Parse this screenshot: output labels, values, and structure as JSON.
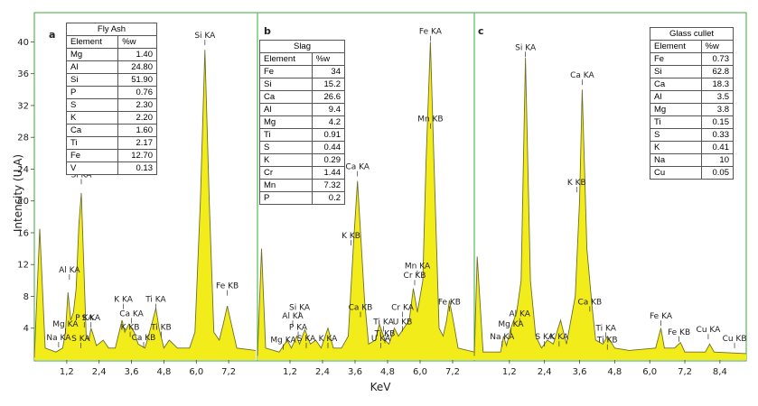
{
  "chart_data": [
    {
      "type": "line",
      "panel": "a",
      "xlabel": "KeV",
      "ylabel": "Intensity (U.A)",
      "x_ticks": [
        "1,2",
        "2,4",
        "3,6",
        "4,8",
        "6,0",
        "7,2"
      ],
      "x_tick_values": [
        1.2,
        2.4,
        3.6,
        4.8,
        6.0,
        7.2
      ],
      "y_ticks": [
        "4",
        "8",
        "12",
        "16",
        "20",
        "24",
        "28",
        "32",
        "36",
        "40"
      ],
      "y_tick_values": [
        4,
        8,
        12,
        16,
        20,
        24,
        28,
        32,
        36,
        40
      ],
      "xlim": [
        0,
        8.2
      ],
      "ylim": [
        0,
        43
      ],
      "spectrum": [
        [
          0.0,
          0.3
        ],
        [
          0.2,
          16.5
        ],
        [
          0.4,
          1.5
        ],
        [
          0.8,
          1.0
        ],
        [
          1.05,
          1.5
        ],
        [
          1.15,
          3.5
        ],
        [
          1.25,
          8.5
        ],
        [
          1.35,
          5.0
        ],
        [
          1.45,
          6.0
        ],
        [
          1.55,
          9.0
        ],
        [
          1.65,
          17.0
        ],
        [
          1.74,
          21.0
        ],
        [
          1.82,
          13.0
        ],
        [
          1.92,
          3.0
        ],
        [
          2.02,
          2.5
        ],
        [
          2.1,
          4.0
        ],
        [
          2.2,
          3.0
        ],
        [
          2.3,
          1.8
        ],
        [
          2.55,
          2.5
        ],
        [
          2.75,
          1.5
        ],
        [
          3.0,
          1.5
        ],
        [
          3.25,
          5.0
        ],
        [
          3.35,
          3.5
        ],
        [
          3.5,
          4.5
        ],
        [
          3.7,
          3.5
        ],
        [
          3.85,
          2.0
        ],
        [
          4.1,
          1.5
        ],
        [
          4.35,
          4.5
        ],
        [
          4.5,
          6.5
        ],
        [
          4.62,
          4.0
        ],
        [
          4.8,
          1.5
        ],
        [
          5.0,
          2.5
        ],
        [
          5.3,
          1.5
        ],
        [
          5.75,
          1.5
        ],
        [
          5.95,
          3.5
        ],
        [
          6.15,
          20.0
        ],
        [
          6.32,
          39.0
        ],
        [
          6.48,
          20.0
        ],
        [
          6.65,
          3.5
        ],
        [
          6.85,
          2.5
        ],
        [
          7.0,
          4.5
        ],
        [
          7.15,
          6.8
        ],
        [
          7.3,
          4.5
        ],
        [
          7.5,
          1.5
        ],
        [
          8.2,
          1.2
        ]
      ],
      "peak_labels": [
        "Na  KA",
        "Mg  KA",
        "Al  KA",
        "Si  KA",
        "P  KA",
        "S  KA",
        "S  KA",
        "K  KA",
        "Ca  KA",
        "K  KB",
        "Ca  KB",
        "Ti  KA",
        "Ti  KB",
        "Si  KA",
        "Fe  KB"
      ],
      "table": {
        "title": "Fly Ash",
        "headers": [
          "Element",
          "%w"
        ],
        "rows": [
          [
            "Mg",
            "1.40"
          ],
          [
            "Al",
            "24.80"
          ],
          [
            "Si",
            "51.90"
          ],
          [
            "P",
            "0.76"
          ],
          [
            "S",
            "2.30"
          ],
          [
            "K",
            "2.20"
          ],
          [
            "Ca",
            "1.60"
          ],
          [
            "Ti",
            "2.17"
          ],
          [
            "Fe",
            "12.70"
          ],
          [
            "V",
            "0.13"
          ]
        ]
      }
    },
    {
      "type": "line",
      "panel": "b",
      "xlabel": "KeV",
      "ylabel": "Intensity (U.A)",
      "x_ticks": [
        "1,2",
        "2,4",
        "3,6",
        "4,8",
        "6,0",
        "7,2"
      ],
      "x_tick_values": [
        1.2,
        2.4,
        3.6,
        4.8,
        6.0,
        7.2
      ],
      "xlim": [
        0,
        8.0
      ],
      "ylim": [
        0,
        43
      ],
      "spectrum": [
        [
          0.0,
          0.5
        ],
        [
          0.15,
          14.0
        ],
        [
          0.3,
          1.5
        ],
        [
          0.8,
          1.0
        ],
        [
          1.1,
          2.5
        ],
        [
          1.25,
          1.5
        ],
        [
          1.45,
          3.0
        ],
        [
          1.55,
          2.0
        ],
        [
          1.75,
          3.8
        ],
        [
          1.95,
          2.0
        ],
        [
          2.15,
          2.5
        ],
        [
          2.35,
          1.5
        ],
        [
          2.6,
          4.0
        ],
        [
          2.8,
          1.5
        ],
        [
          3.1,
          1.5
        ],
        [
          3.35,
          3.0
        ],
        [
          3.55,
          15.0
        ],
        [
          3.69,
          22.5
        ],
        [
          3.82,
          15.0
        ],
        [
          3.95,
          7.5
        ],
        [
          4.1,
          2.0
        ],
        [
          4.35,
          2.5
        ],
        [
          4.5,
          4.5
        ],
        [
          4.7,
          2.5
        ],
        [
          4.85,
          2.0
        ],
        [
          5.05,
          4.0
        ],
        [
          5.2,
          3.0
        ],
        [
          5.4,
          4.0
        ],
        [
          5.6,
          5.0
        ],
        [
          5.75,
          9.0
        ],
        [
          5.9,
          6.0
        ],
        [
          6.1,
          10.0
        ],
        [
          6.22,
          25.0
        ],
        [
          6.38,
          40.0
        ],
        [
          6.52,
          24.0
        ],
        [
          6.7,
          4.0
        ],
        [
          6.85,
          3.0
        ],
        [
          6.98,
          5.0
        ],
        [
          7.08,
          7.5
        ],
        [
          7.22,
          5.0
        ],
        [
          7.4,
          1.5
        ],
        [
          8.0,
          1.0
        ]
      ],
      "peak_labels": [
        "Mg  KA",
        "Al  KA",
        "Si  KA",
        "P  KA",
        "S  KA",
        "K  KA",
        "Ca  KA",
        "K  KB",
        "Ca  KB",
        "Ti  KA",
        "Ti  KB",
        "U  KA",
        "Cr  KA",
        "U  KB",
        "Mn  KA",
        "Cr  KB",
        "Fe  KA",
        "Mn  KB",
        "Fe  KB"
      ],
      "table": {
        "title": "Slag",
        "headers": [
          "Element",
          "%w"
        ],
        "rows": [
          [
            "Fe",
            "34"
          ],
          [
            "Si",
            "15.2"
          ],
          [
            "Ca",
            "26.6"
          ],
          [
            "Al",
            "9.4"
          ],
          [
            "Mg",
            "4.2"
          ],
          [
            "Ti",
            "0.91"
          ],
          [
            "S",
            "0.44"
          ],
          [
            "K",
            "0.29"
          ],
          [
            "Cr",
            "1.44"
          ],
          [
            "Mn",
            "7.32"
          ],
          [
            "P",
            "0.2"
          ]
        ]
      }
    },
    {
      "type": "line",
      "panel": "c",
      "xlabel": "KeV",
      "ylabel": "Intensity (U.A)",
      "x_ticks": [
        "1,2",
        "2,4",
        "3,6",
        "4,8",
        "6,0",
        "7,2",
        "8,4"
      ],
      "x_tick_values": [
        1.2,
        2.4,
        3.6,
        4.8,
        6.0,
        7.2,
        8.4
      ],
      "xlim": [
        0,
        9.3
      ],
      "ylim": [
        0,
        43
      ],
      "spectrum": [
        [
          0.0,
          0.5
        ],
        [
          0.1,
          13.0
        ],
        [
          0.3,
          1.0
        ],
        [
          0.9,
          1.0
        ],
        [
          1.0,
          3.0
        ],
        [
          1.1,
          1.8
        ],
        [
          1.25,
          4.0
        ],
        [
          1.45,
          6.0
        ],
        [
          1.6,
          10.0
        ],
        [
          1.75,
          38.0
        ],
        [
          1.92,
          10.0
        ],
        [
          2.1,
          3.0
        ],
        [
          2.3,
          1.5
        ],
        [
          2.5,
          2.5
        ],
        [
          2.7,
          2.0
        ],
        [
          2.95,
          5.0
        ],
        [
          3.15,
          2.0
        ],
        [
          3.45,
          8.0
        ],
        [
          3.6,
          20.0
        ],
        [
          3.69,
          34.0
        ],
        [
          3.85,
          14.0
        ],
        [
          4.02,
          7.0
        ],
        [
          4.15,
          2.5
        ],
        [
          4.4,
          2.0
        ],
        [
          4.55,
          3.0
        ],
        [
          4.8,
          1.5
        ],
        [
          5.3,
          1.2
        ],
        [
          6.2,
          1.5
        ],
        [
          6.38,
          4.0
        ],
        [
          6.5,
          1.5
        ],
        [
          6.85,
          1.5
        ],
        [
          7.05,
          2.2
        ],
        [
          7.2,
          1.0
        ],
        [
          7.9,
          1.0
        ],
        [
          8.05,
          2.0
        ],
        [
          8.2,
          1.0
        ],
        [
          9.3,
          0.8
        ]
      ],
      "peak_labels": [
        "Na  KA",
        "Mg  KA",
        "Al  KA",
        "Si  KA",
        "S  KA",
        "K  KA",
        "Ca  KA",
        "K  KB",
        "Ca  KB",
        "Ti  KA",
        "Ti  KB",
        "Fe  KA",
        "Fe  KB",
        "Cu  KA",
        "Cu  KB"
      ],
      "table": {
        "title": "Glass cullet",
        "headers": [
          "Element",
          "%w"
        ],
        "rows": [
          [
            "Fe",
            "0.73"
          ],
          [
            "Si",
            "62.8"
          ],
          [
            "Ca",
            "18.3"
          ],
          [
            "Al",
            "3.5"
          ],
          [
            "Mg",
            "3.8"
          ],
          [
            "Ti",
            "0.15"
          ],
          [
            "S",
            "0.33"
          ],
          [
            "K",
            "0.41"
          ],
          [
            "Na",
            "10"
          ],
          [
            "Cu",
            "0.05"
          ]
        ]
      }
    }
  ],
  "figure": {
    "panel_labels": [
      "a",
      "b",
      "c"
    ],
    "xlabel": "KeV",
    "ylabel": "Intensity (U.A)",
    "colors": {
      "fill": "#f3ec1b",
      "line": "#6e6e2a",
      "frame": "#5cb85c",
      "text": "#222222"
    }
  }
}
